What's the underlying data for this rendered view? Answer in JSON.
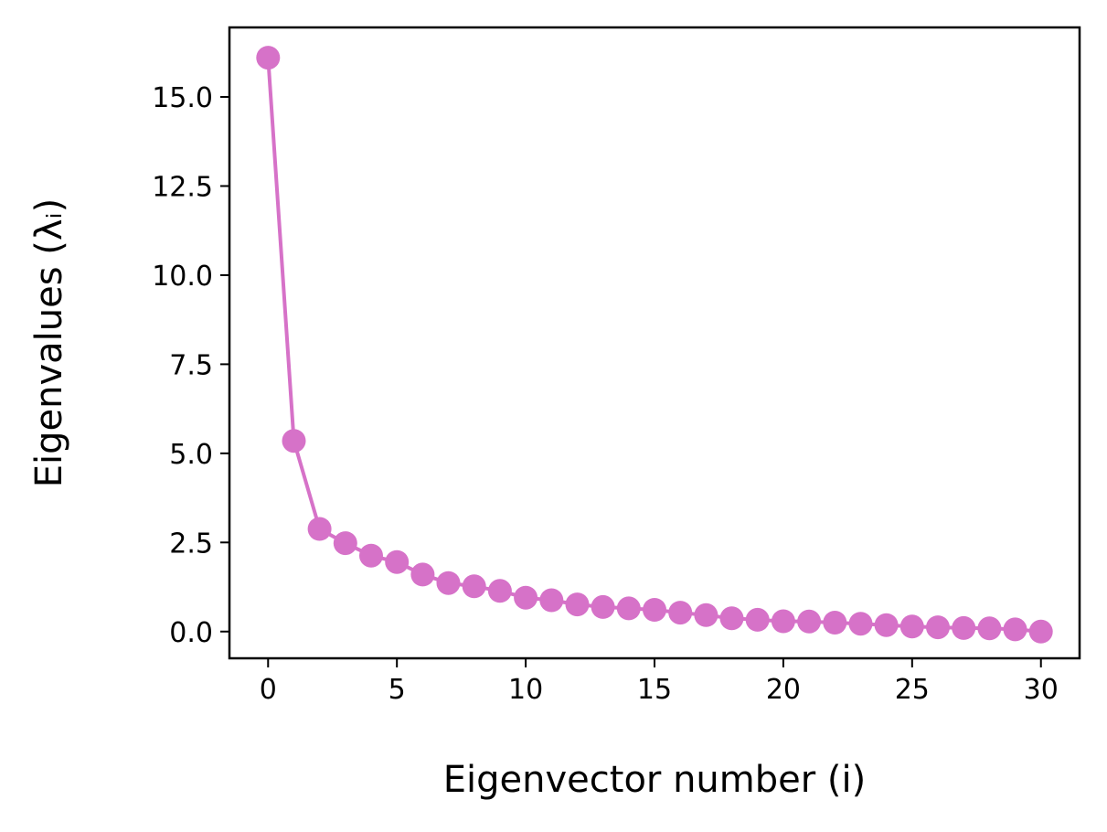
{
  "chart_data": {
    "type": "line",
    "xlabel": "Eigenvector number (i)",
    "ylabel": "Eigenvalues (λᵢ)",
    "xlim": [
      -1.5,
      31.5
    ],
    "ylim": [
      -0.75,
      16.95
    ],
    "xticks": [
      0,
      5,
      10,
      15,
      20,
      25,
      30
    ],
    "xtick_labels": [
      "0",
      "5",
      "10",
      "15",
      "20",
      "25",
      "30"
    ],
    "yticks": [
      0,
      2.5,
      5,
      7.5,
      10,
      12.5,
      15
    ],
    "ytick_labels": [
      "0.0",
      "2.5",
      "5.0",
      "7.5",
      "10.0",
      "12.5",
      "15.0"
    ],
    "grid": false,
    "series": [
      {
        "color": "#d672c8",
        "marker": "circle",
        "x": [
          0,
          1,
          2,
          3,
          4,
          5,
          6,
          7,
          8,
          9,
          10,
          11,
          12,
          13,
          14,
          15,
          16,
          17,
          18,
          19,
          20,
          21,
          22,
          23,
          24,
          25,
          26,
          27,
          28,
          29,
          30
        ],
        "y": [
          16.1,
          5.35,
          2.88,
          2.48,
          2.13,
          1.95,
          1.6,
          1.36,
          1.27,
          1.14,
          0.95,
          0.88,
          0.76,
          0.69,
          0.65,
          0.61,
          0.53,
          0.46,
          0.37,
          0.33,
          0.29,
          0.28,
          0.25,
          0.22,
          0.18,
          0.14,
          0.12,
          0.1,
          0.09,
          0.06,
          0.0
        ]
      }
    ]
  }
}
